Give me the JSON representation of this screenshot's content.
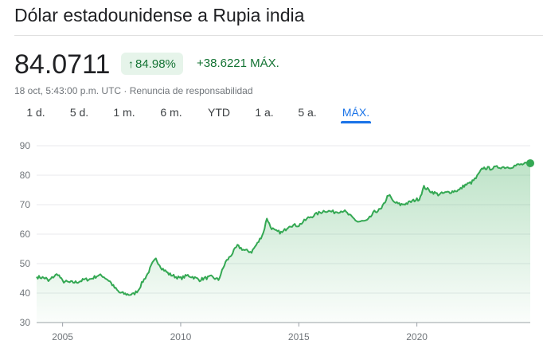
{
  "header": {
    "title": "Dólar estadounidense a Rupia india"
  },
  "quote": {
    "price": "84.0711",
    "percent_change": "84.98%",
    "percent_arrow_icon": "arrow-up-icon",
    "absolute_change": "+38.6221 MÁX.",
    "timestamp": "18 oct, 5:43:00 p.m. UTC",
    "separator": " · ",
    "disclaimer": "Renuncia de responsabilidad"
  },
  "tabs": [
    {
      "label": "1 d.",
      "active": false
    },
    {
      "label": "5 d.",
      "active": false
    },
    {
      "label": "1 m.",
      "active": false
    },
    {
      "label": "6 m.",
      "active": false
    },
    {
      "label": "YTD",
      "active": false
    },
    {
      "label": "1 a.",
      "active": false
    },
    {
      "label": "5 a.",
      "active": false
    },
    {
      "label": "MÁX.",
      "active": true
    }
  ],
  "colors": {
    "line": "#34a853",
    "positive_text": "#137333",
    "positive_bg": "#e6f4ea",
    "active_tab": "#1a73e8",
    "grid": "#e8eaed"
  },
  "chart_data": {
    "type": "area",
    "title": "",
    "xlabel": "",
    "ylabel": "",
    "xlim": [
      2003.9,
      2024.8
    ],
    "ylim": [
      30,
      90
    ],
    "y_ticks": [
      "30",
      "40",
      "50",
      "60",
      "70",
      "80",
      "90"
    ],
    "x_ticks": [
      {
        "value": 2005,
        "label": "2005"
      },
      {
        "value": 2010,
        "label": "2010"
      },
      {
        "value": 2015,
        "label": "2015"
      },
      {
        "value": 2020,
        "label": "2020"
      }
    ],
    "grid": true,
    "series": [
      {
        "x": [
          2003.9,
          2004.1,
          2004.3,
          2004.4,
          2004.6,
          2004.8,
          2005.0,
          2005.3,
          2005.6,
          2005.9,
          2006.2,
          2006.5,
          2006.7,
          2007.0,
          2007.2,
          2007.4,
          2007.6,
          2007.8,
          2008.0,
          2008.2,
          2008.4,
          2008.6,
          2008.8,
          2008.95,
          2009.2,
          2009.5,
          2009.8,
          2010.0,
          2010.3,
          2010.5,
          2010.8,
          2011.0,
          2011.3,
          2011.6,
          2011.9,
          2012.1,
          2012.4,
          2012.7,
          2013.0,
          2013.3,
          2013.5,
          2013.65,
          2013.8,
          2014.0,
          2014.3,
          2014.6,
          2015.0,
          2015.4,
          2015.8,
          2016.1,
          2016.5,
          2016.9,
          2017.2,
          2017.5,
          2017.9,
          2018.2,
          2018.5,
          2018.8,
          2019.0,
          2019.3,
          2019.6,
          2019.9,
          2020.1,
          2020.3,
          2020.6,
          2020.9,
          2021.2,
          2021.5,
          2021.8,
          2022.0,
          2022.3,
          2022.5,
          2022.8,
          2023.1,
          2023.5,
          2023.9,
          2024.3,
          2024.8
        ],
        "y": [
          45.5,
          45.3,
          45.0,
          44.0,
          45.5,
          46.5,
          44.0,
          43.6,
          43.7,
          44.5,
          44.8,
          46.0,
          45.8,
          44.0,
          41.8,
          40.2,
          39.8,
          39.5,
          39.6,
          41.0,
          44.0,
          46.5,
          50.0,
          51.5,
          48.5,
          46.5,
          45.5,
          45.0,
          46.0,
          45.5,
          44.5,
          45.0,
          45.5,
          44.5,
          50.5,
          52.5,
          56.0,
          54.5,
          54.0,
          57.5,
          60.5,
          65.5,
          62.5,
          61.0,
          60.5,
          63.0,
          63.0,
          65.5,
          67.0,
          68.0,
          67.5,
          68.0,
          66.0,
          64.2,
          64.5,
          67.5,
          68.5,
          73.5,
          71.0,
          70.0,
          70.5,
          71.5,
          72.0,
          76.0,
          74.5,
          73.5,
          74.0,
          74.5,
          75.0,
          76.5,
          77.5,
          79.0,
          82.5,
          82.3,
          82.8,
          82.7,
          83.5,
          84.07
        ]
      }
    ]
  }
}
